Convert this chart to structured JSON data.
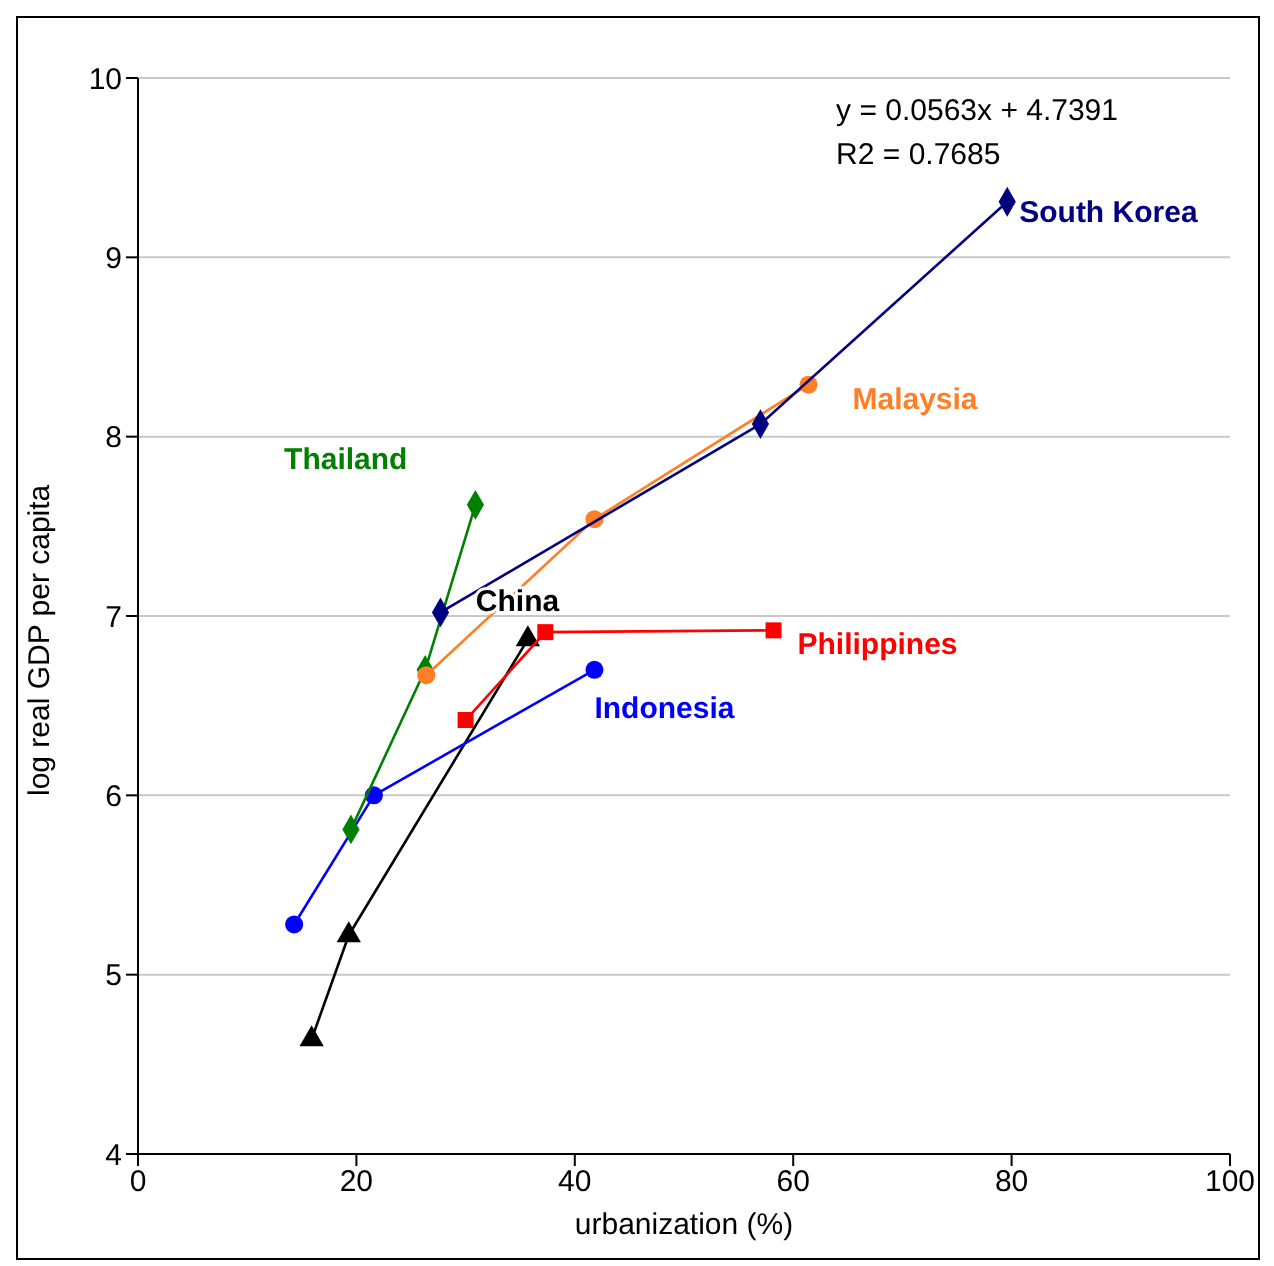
{
  "chart_data": {
    "type": "line",
    "xlabel": "urbanization (%)",
    "ylabel": "log real GDP per capita",
    "annotations": [
      "y = 0.0563x + 4.7391",
      "R2 = 0.7685"
    ],
    "xlim": [
      0,
      100
    ],
    "xticks": [
      0,
      20,
      40,
      60,
      80,
      100
    ],
    "ylim": [
      4,
      10
    ],
    "yticks": [
      4,
      5,
      6,
      7,
      8,
      9,
      10
    ],
    "grid": "y",
    "legend": false,
    "line_style": "solid",
    "series": [
      {
        "name": "South Korea",
        "color": "#000080",
        "marker": "diamond",
        "x": [
          27.7,
          57.0,
          79.6
        ],
        "values": [
          7.02,
          8.07,
          9.31
        ]
      },
      {
        "name": "Malaysia",
        "color": "#ff7f27",
        "marker": "circle",
        "x": [
          26.4,
          41.8,
          61.4
        ],
        "values": [
          6.67,
          7.54,
          8.29
        ]
      },
      {
        "name": "Thailand",
        "color": "#008000",
        "marker": "diamond",
        "x": [
          19.5,
          26.3,
          30.9
        ],
        "values": [
          5.81,
          6.7,
          7.62
        ]
      },
      {
        "name": "Philippines",
        "color": "#ff0000",
        "marker": "square",
        "x": [
          30.0,
          37.3,
          58.2
        ],
        "values": [
          6.42,
          6.91,
          6.92
        ]
      },
      {
        "name": "Indonesia",
        "color": "#0000ff",
        "marker": "circle",
        "x": [
          14.3,
          21.6,
          41.8
        ],
        "values": [
          5.28,
          6.0,
          6.7
        ]
      },
      {
        "name": "China",
        "color": "#000000",
        "marker": "triangle",
        "x": [
          15.9,
          19.3,
          35.7
        ],
        "values": [
          4.64,
          5.22,
          6.87
        ]
      }
    ]
  }
}
